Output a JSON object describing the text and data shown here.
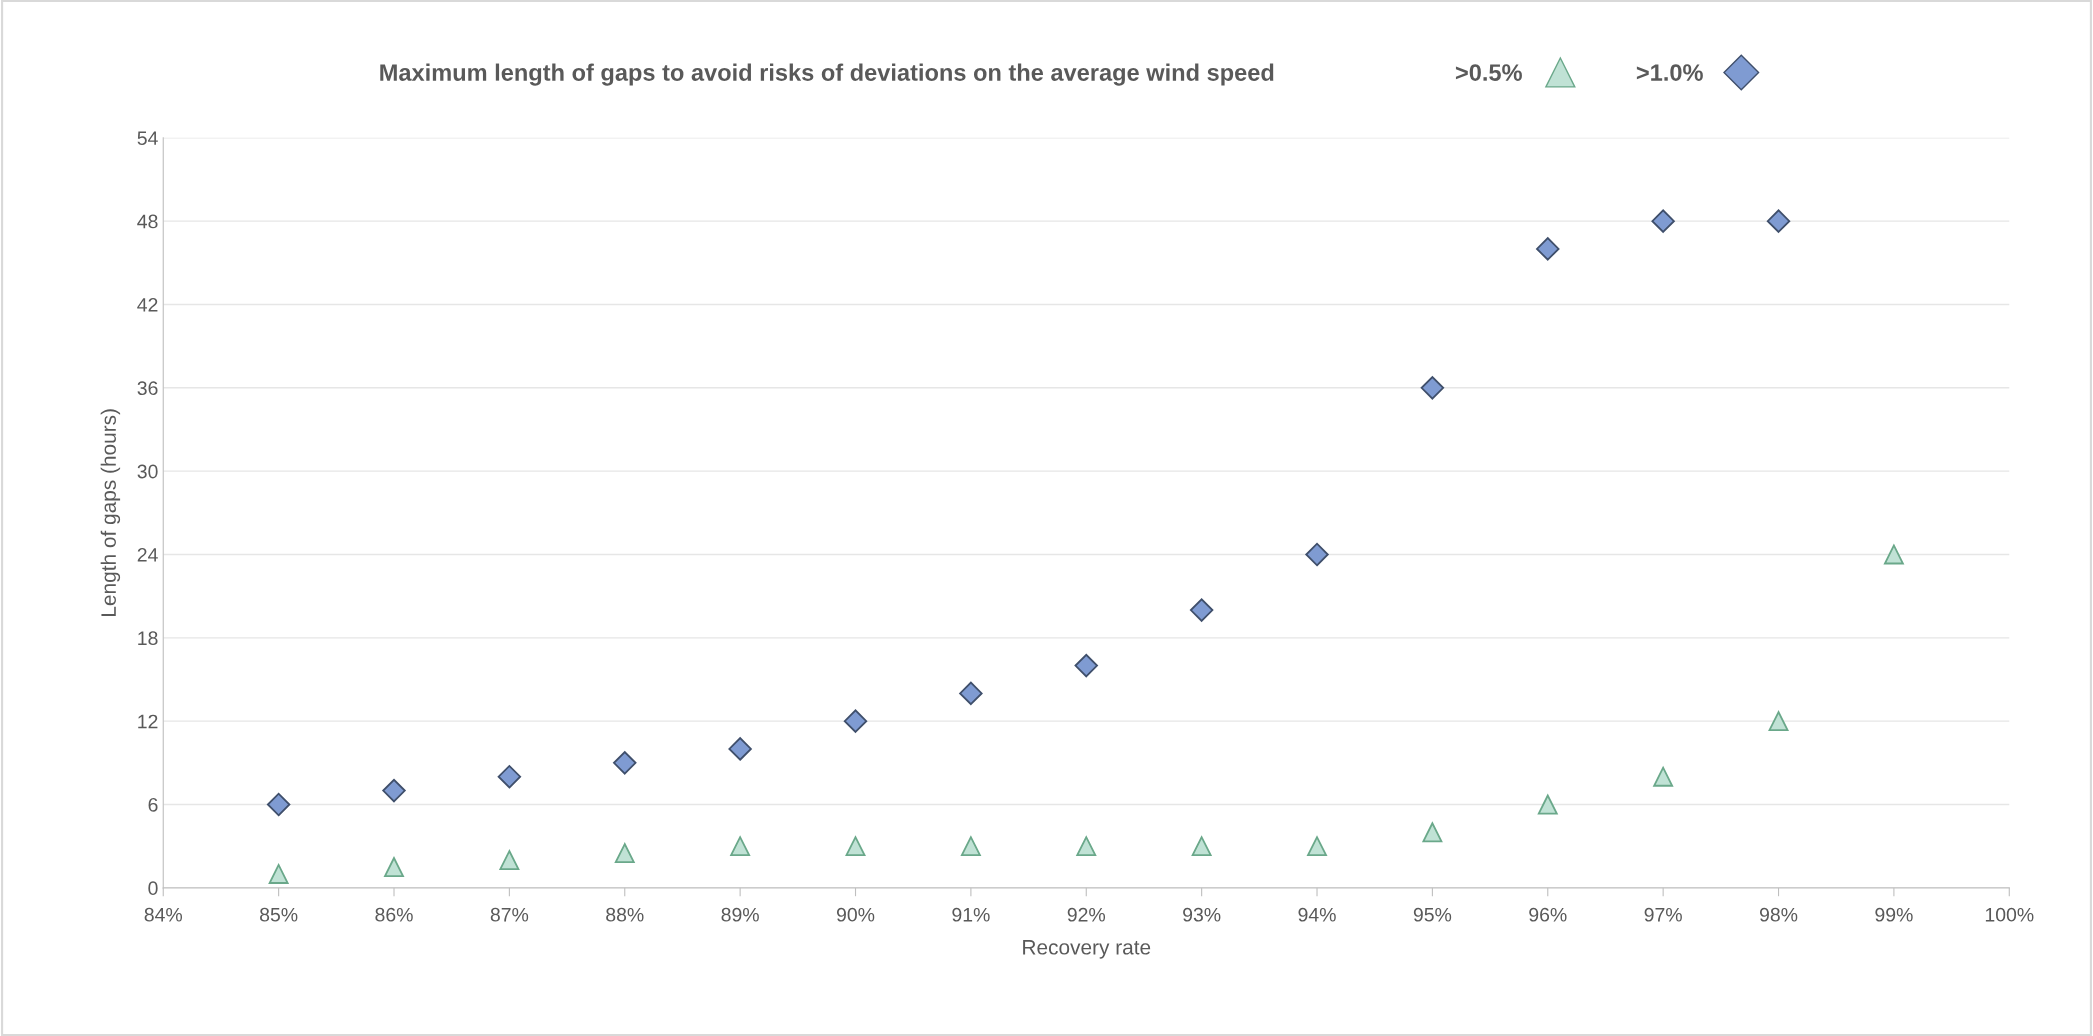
{
  "chart_data": {
    "type": "scatter",
    "title": "Maximum length of gaps to avoid risks of deviations on the average wind speed",
    "xlabel": "Recovery rate",
    "ylabel": "Length of gaps (hours)",
    "x": [
      85,
      86,
      87,
      88,
      89,
      90,
      91,
      92,
      93,
      94,
      95,
      96,
      97,
      98,
      99
    ],
    "series": [
      {
        "name": ">0.5%",
        "color": "#c0e2d5",
        "marker": "triangle",
        "values": [
          1,
          1.5,
          2,
          2.5,
          3,
          3,
          3,
          3,
          3,
          3,
          4,
          6,
          8,
          12,
          24
        ]
      },
      {
        "name": ">1.0%",
        "color": "#7f9bd2",
        "marker": "diamond",
        "values": [
          6,
          7,
          8,
          9,
          10,
          12,
          14,
          16,
          20,
          24,
          36,
          46,
          48,
          48,
          null
        ]
      }
    ],
    "xlim": [
      84,
      100
    ],
    "xticks": [
      {
        "value": 84,
        "label": "84%"
      },
      {
        "value": 85,
        "label": "85%"
      },
      {
        "value": 86,
        "label": "86%"
      },
      {
        "value": 87,
        "label": "87%"
      },
      {
        "value": 88,
        "label": "88%"
      },
      {
        "value": 89,
        "label": "89%"
      },
      {
        "value": 90,
        "label": "90%"
      },
      {
        "value": 91,
        "label": "91%"
      },
      {
        "value": 92,
        "label": "92%"
      },
      {
        "value": 93,
        "label": "93%"
      },
      {
        "value": 94,
        "label": "94%"
      },
      {
        "value": 95,
        "label": "95%"
      },
      {
        "value": 96,
        "label": "96%"
      },
      {
        "value": 97,
        "label": "97%"
      },
      {
        "value": 98,
        "label": "98%"
      },
      {
        "value": 99,
        "label": "99%"
      },
      {
        "value": 100,
        "label": "100%"
      }
    ],
    "ylim": [
      0,
      54
    ],
    "yticks": [
      0,
      6,
      12,
      18,
      24,
      30,
      36,
      42,
      48,
      54
    ],
    "grid": "y",
    "legend": "top"
  }
}
